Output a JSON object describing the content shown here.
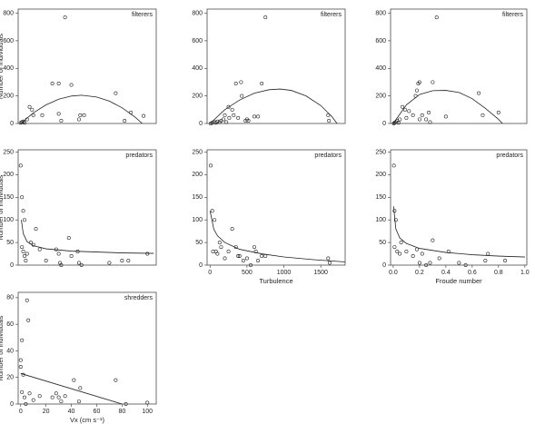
{
  "chart_data": [
    {
      "type": "scatter",
      "panel_label": "filterers",
      "ylabel": "Number of individuals",
      "xlim": [
        -2,
        107
      ],
      "ylim": [
        0,
        830
      ],
      "yticks": [
        0,
        200,
        400,
        600,
        800
      ],
      "x": [
        0,
        1,
        2,
        3,
        5,
        7,
        9,
        10,
        17,
        25,
        30,
        30,
        32,
        35,
        40,
        46,
        47,
        50,
        75,
        82,
        87,
        97
      ],
      "values": [
        5,
        10,
        15,
        5,
        30,
        120,
        100,
        60,
        60,
        290,
        290,
        70,
        20,
        770,
        280,
        30,
        60,
        60,
        220,
        20,
        80,
        55
      ],
      "curve": {
        "x": [
          0,
          10,
          20,
          30,
          40,
          48,
          60,
          70,
          80,
          90,
          96
        ],
        "values": [
          0,
          77,
          135,
          176,
          199,
          205,
          192,
          162,
          114,
          48,
          0
        ]
      }
    },
    {
      "type": "scatter",
      "panel_label": "filterers",
      "xlim": [
        -40,
        1830
      ],
      "ylim": [
        0,
        830
      ],
      "yticks": [
        0,
        200,
        400,
        600,
        800
      ],
      "x": [
        10,
        30,
        60,
        80,
        100,
        130,
        150,
        180,
        200,
        220,
        250,
        260,
        300,
        320,
        350,
        380,
        420,
        430,
        480,
        500,
        520,
        600,
        650,
        700,
        750,
        1600,
        1610
      ],
      "values": [
        0,
        5,
        10,
        5,
        15,
        10,
        20,
        30,
        60,
        10,
        120,
        40,
        100,
        60,
        290,
        40,
        300,
        200,
        20,
        30,
        20,
        50,
        50,
        290,
        770,
        60,
        20
      ],
      "curve": {
        "x": [
          0,
          200,
          400,
          600,
          800,
          950,
          1100,
          1300,
          1500,
          1650,
          1720
        ],
        "values": [
          0,
          100,
          170,
          220,
          245,
          250,
          240,
          200,
          130,
          50,
          0
        ]
      }
    },
    {
      "type": "scatter",
      "panel_label": "filterers",
      "xlim": [
        -0.02,
        1.015
      ],
      "ylim": [
        0,
        830
      ],
      "yticks": [
        0,
        200,
        400,
        600,
        800
      ],
      "x": [
        0.005,
        0.01,
        0.02,
        0.03,
        0.04,
        0.05,
        0.07,
        0.09,
        0.1,
        0.12,
        0.15,
        0.17,
        0.18,
        0.19,
        0.2,
        0.2,
        0.22,
        0.25,
        0.27,
        0.28,
        0.3,
        0.33,
        0.4,
        0.65,
        0.68,
        0.8
      ],
      "values": [
        0,
        5,
        10,
        20,
        5,
        30,
        120,
        100,
        40,
        90,
        60,
        200,
        240,
        290,
        300,
        30,
        60,
        30,
        80,
        10,
        300,
        770,
        50,
        220,
        60,
        80
      ],
      "curve": {
        "x": [
          0,
          0.1,
          0.2,
          0.3,
          0.4,
          0.5,
          0.6,
          0.7,
          0.8,
          0.83
        ],
        "values": [
          0,
          135,
          210,
          238,
          240,
          225,
          180,
          110,
          30,
          0
        ]
      }
    },
    {
      "type": "scatter",
      "panel_label": "predators",
      "ylabel": "Number of individuals",
      "xlim": [
        -2,
        107
      ],
      "ylim": [
        0,
        255
      ],
      "yticks": [
        0,
        50,
        100,
        150,
        200,
        250
      ],
      "x": [
        0,
        1,
        2,
        3,
        1,
        2,
        3,
        4,
        5,
        8,
        10,
        12,
        15,
        20,
        28,
        30,
        31,
        32,
        38,
        40,
        45,
        46,
        48,
        70,
        80,
        85,
        100
      ],
      "values": [
        220,
        150,
        120,
        100,
        40,
        30,
        20,
        10,
        25,
        50,
        45,
        80,
        35,
        10,
        35,
        25,
        5,
        0,
        60,
        20,
        30,
        5,
        0,
        5,
        10,
        10,
        25
      ],
      "curve": {
        "x": [
          0.5,
          2,
          5,
          10,
          20,
          40,
          60,
          80,
          105
        ],
        "values": [
          100,
          70,
          52,
          43,
          36,
          31,
          29,
          27,
          26
        ]
      }
    },
    {
      "type": "scatter",
      "panel_label": "predators",
      "xlabel": "Turbulence",
      "xlim": [
        -40,
        1830
      ],
      "ylim": [
        0,
        255
      ],
      "yticks": [
        0,
        50,
        100,
        150,
        200,
        250
      ],
      "xticks": [
        0,
        500,
        1000,
        1500
      ],
      "x": [
        10,
        30,
        60,
        40,
        80,
        100,
        130,
        150,
        200,
        250,
        300,
        350,
        380,
        400,
        450,
        500,
        550,
        600,
        620,
        650,
        700,
        750,
        1600,
        1620
      ],
      "values": [
        220,
        120,
        100,
        30,
        30,
        25,
        50,
        40,
        15,
        30,
        80,
        40,
        20,
        20,
        10,
        15,
        0,
        40,
        30,
        10,
        20,
        20,
        15,
        5
      ],
      "curve": {
        "x": [
          0,
          50,
          100,
          200,
          400,
          700,
          1000,
          1400,
          1830
        ],
        "values": [
          120,
          80,
          65,
          50,
          35,
          25,
          18,
          12,
          7
        ]
      }
    },
    {
      "type": "scatter",
      "panel_label": "predators",
      "xlabel": "Froude number",
      "xlim": [
        -0.02,
        1.015
      ],
      "ylim": [
        0,
        255
      ],
      "yticks": [
        0,
        50,
        100,
        150,
        200,
        250
      ],
      "xticks": [
        {
          "value": 0,
          "label": "0.0"
        },
        0.2,
        0.4,
        0.6,
        0.8,
        {
          "value": 1,
          "label": "1.0"
        }
      ],
      "x": [
        0.005,
        0.01,
        0.02,
        0.01,
        0.03,
        0.05,
        0.06,
        0.1,
        0.15,
        0.18,
        0.2,
        0.22,
        0.25,
        0.28,
        0.3,
        0.35,
        0.42,
        0.5,
        0.55,
        0.7,
        0.72,
        0.85
      ],
      "values": [
        220,
        120,
        100,
        40,
        30,
        25,
        50,
        30,
        20,
        35,
        5,
        25,
        0,
        5,
        55,
        15,
        30,
        5,
        0,
        10,
        25,
        10
      ],
      "curve": {
        "x": [
          0.003,
          0.02,
          0.05,
          0.1,
          0.2,
          0.4,
          0.6,
          0.8,
          1
        ],
        "values": [
          130,
          80,
          60,
          48,
          37,
          28,
          23,
          20,
          18
        ]
      }
    },
    {
      "type": "scatter",
      "panel_label": "shredders",
      "ylabel": "Number of individuals",
      "xlabel": "Vx (cm s⁻¹)",
      "xlim": [
        -2,
        107
      ],
      "ylim": [
        0,
        84
      ],
      "yticks": [
        0,
        20,
        40,
        60,
        80
      ],
      "xticks": [
        0,
        20,
        40,
        60,
        80,
        100
      ],
      "x": [
        0,
        0,
        1,
        1,
        2,
        3,
        4,
        5,
        6,
        7,
        10,
        15,
        25,
        28,
        30,
        32,
        35,
        42,
        46,
        47,
        75,
        83,
        100
      ],
      "values": [
        33,
        28,
        48,
        9,
        22,
        5,
        0,
        78,
        63,
        8,
        3,
        6,
        5,
        8,
        5,
        2,
        6,
        18,
        2,
        12,
        18,
        0,
        1
      ],
      "curve": {
        "x": [
          0,
          80
        ],
        "values": [
          23,
          0
        ]
      }
    }
  ]
}
